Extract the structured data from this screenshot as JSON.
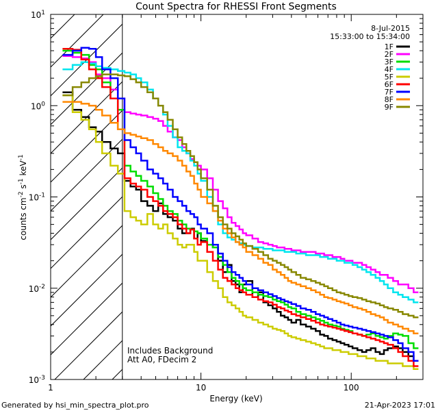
{
  "chart_data": {
    "type": "line",
    "title": "Count Spectra for RHESSI Front Segments",
    "xlabel": "Energy (keV)",
    "ylabel": "counts cm",
    "ylabel_parts": {
      "base": "counts cm",
      "exp1": "-2",
      "s": " s",
      "exp2": "-1",
      "kev": " keV",
      "exp3": "-1"
    },
    "xscale": "log",
    "yscale": "log",
    "xlim": [
      1,
      300
    ],
    "ylim": [
      0.001,
      10
    ],
    "x_tick_labels": [
      {
        "value": 1,
        "label": "1"
      },
      {
        "value": 10,
        "label": "10"
      },
      {
        "value": 100,
        "label": "100"
      }
    ],
    "y_tick_labels": [
      {
        "value": 10,
        "base": "10",
        "exp": "1"
      },
      {
        "value": 1,
        "base": "10",
        "exp": "0"
      },
      {
        "value": 0.1,
        "base": "10",
        "exp": "-1"
      },
      {
        "value": 0.01,
        "base": "10",
        "exp": "-2"
      },
      {
        "value": 0.001,
        "base": "10",
        "exp": "-3"
      }
    ],
    "date": "8-Jul-2015",
    "time_range": "15:33:00 to 15:34:00",
    "hatched_region_max_energy": 3,
    "annotations": [
      "Includes Background",
      "Att A0, FDecim 2"
    ],
    "footer_left": "Generated by hsi_min_spectra_plot.pro",
    "footer_right": "21-Apr-2023 17:01",
    "energy_bins": [
      1.2,
      1.4,
      1.6,
      1.8,
      2.0,
      2.2,
      2.5,
      2.8,
      3.1,
      3.4,
      3.7,
      4.0,
      4.4,
      4.8,
      5.2,
      5.6,
      6.0,
      6.5,
      7.0,
      7.5,
      8.0,
      8.5,
      9.0,
      9.5,
      10,
      11,
      12,
      13,
      14,
      15,
      16,
      17,
      18,
      19,
      20,
      22,
      24,
      26,
      28,
      30,
      32,
      34,
      36,
      38,
      40,
      43,
      46,
      50,
      54,
      58,
      62,
      66,
      70,
      75,
      80,
      85,
      90,
      96,
      102,
      110,
      118,
      126,
      135,
      145,
      155,
      165,
      175,
      190,
      205,
      220,
      240,
      260,
      280
    ],
    "series": [
      {
        "name": "1F",
        "color": "#000000",
        "values": [
          1.4,
          0.9,
          0.75,
          0.58,
          0.52,
          0.4,
          0.34,
          0.3,
          0.15,
          0.13,
          0.12,
          0.09,
          0.08,
          0.07,
          0.085,
          0.065,
          0.06,
          0.055,
          0.045,
          0.04,
          0.04,
          0.045,
          0.035,
          0.04,
          0.033,
          0.03,
          0.028,
          0.02,
          0.015,
          0.018,
          0.012,
          0.011,
          0.009,
          0.011,
          0.012,
          0.008,
          0.009,
          0.007,
          0.0065,
          0.006,
          0.0055,
          0.005,
          0.0048,
          0.0045,
          0.0042,
          0.0045,
          0.004,
          0.0038,
          0.0036,
          0.0034,
          0.0031,
          0.003,
          0.0028,
          0.0027,
          0.0026,
          0.0025,
          0.0024,
          0.0023,
          0.0022,
          0.0021,
          0.002,
          0.0021,
          0.0022,
          0.002,
          0.0019,
          0.0021,
          0.0022,
          0.0023,
          0.0022,
          0.002,
          0.0018,
          0.0016
        ]
      },
      {
        "name": "2F",
        "color": "#ff00ff",
        "values": [
          3.5,
          3.4,
          3.3,
          3.0,
          2.2,
          2.0,
          1.5,
          1.2,
          0.85,
          0.82,
          0.8,
          0.78,
          0.75,
          0.72,
          0.68,
          0.6,
          0.52,
          0.45,
          0.42,
          0.35,
          0.3,
          0.26,
          0.24,
          0.22,
          0.2,
          0.16,
          0.12,
          0.09,
          0.075,
          0.06,
          0.052,
          0.048,
          0.044,
          0.04,
          0.038,
          0.035,
          0.032,
          0.031,
          0.03,
          0.029,
          0.028,
          0.028,
          0.027,
          0.027,
          0.026,
          0.026,
          0.025,
          0.025,
          0.025,
          0.024,
          0.024,
          0.023,
          0.023,
          0.022,
          0.022,
          0.021,
          0.02,
          0.02,
          0.019,
          0.019,
          0.018,
          0.017,
          0.016,
          0.015,
          0.014,
          0.014,
          0.013,
          0.012,
          0.011,
          0.011,
          0.01,
          0.009
        ]
      },
      {
        "name": "3F",
        "color": "#00dd00",
        "values": [
          4.0,
          3.8,
          3.6,
          2.8,
          2.5,
          1.8,
          1.2,
          0.9,
          0.22,
          0.19,
          0.17,
          0.15,
          0.13,
          0.11,
          0.095,
          0.08,
          0.07,
          0.065,
          0.055,
          0.05,
          0.045,
          0.044,
          0.042,
          0.04,
          0.035,
          0.03,
          0.028,
          0.022,
          0.018,
          0.015,
          0.013,
          0.012,
          0.011,
          0.01,
          0.0095,
          0.009,
          0.0085,
          0.0082,
          0.008,
          0.0075,
          0.0072,
          0.007,
          0.0066,
          0.0062,
          0.006,
          0.0055,
          0.0052,
          0.005,
          0.0048,
          0.0046,
          0.0044,
          0.0042,
          0.004,
          0.0039,
          0.0038,
          0.0036,
          0.0035,
          0.0034,
          0.0032,
          0.0031,
          0.003,
          0.0031,
          0.0032,
          0.003,
          0.0029,
          0.0028,
          0.003,
          0.0032,
          0.0031,
          0.003,
          0.0025,
          0.0022
        ]
      },
      {
        "name": "4F",
        "color": "#00e5ee",
        "values": [
          2.5,
          2.8,
          3.0,
          2.9,
          2.7,
          2.6,
          2.5,
          2.4,
          2.3,
          2.2,
          2.0,
          1.8,
          1.5,
          1.2,
          1.0,
          0.8,
          0.6,
          0.45,
          0.35,
          0.32,
          0.3,
          0.25,
          0.22,
          0.18,
          0.15,
          0.1,
          0.07,
          0.05,
          0.04,
          0.036,
          0.034,
          0.032,
          0.031,
          0.03,
          0.029,
          0.028,
          0.028,
          0.027,
          0.027,
          0.026,
          0.026,
          0.026,
          0.025,
          0.025,
          0.025,
          0.024,
          0.024,
          0.023,
          0.023,
          0.023,
          0.022,
          0.022,
          0.021,
          0.021,
          0.02,
          0.02,
          0.019,
          0.019,
          0.018,
          0.017,
          0.016,
          0.015,
          0.014,
          0.013,
          0.012,
          0.011,
          0.01,
          0.009,
          0.0085,
          0.008,
          0.0075,
          0.007
        ]
      },
      {
        "name": "5F",
        "color": "#cccc00",
        "values": [
          1.3,
          0.85,
          0.7,
          0.55,
          0.4,
          0.3,
          0.22,
          0.18,
          0.07,
          0.06,
          0.055,
          0.05,
          0.065,
          0.05,
          0.045,
          0.05,
          0.04,
          0.035,
          0.03,
          0.028,
          0.03,
          0.03,
          0.025,
          0.02,
          0.02,
          0.015,
          0.012,
          0.01,
          0.008,
          0.007,
          0.0065,
          0.006,
          0.0055,
          0.005,
          0.0048,
          0.0045,
          0.0042,
          0.004,
          0.0038,
          0.0036,
          0.0035,
          0.0034,
          0.0032,
          0.003,
          0.0029,
          0.0028,
          0.0027,
          0.0026,
          0.0025,
          0.0024,
          0.0023,
          0.0022,
          0.0022,
          0.0021,
          0.0021,
          0.002,
          0.002,
          0.0019,
          0.0019,
          0.0018,
          0.0018,
          0.0017,
          0.0017,
          0.0016,
          0.0016,
          0.0016,
          0.0015,
          0.0015,
          0.0015,
          0.0014,
          0.0014,
          0.0013
        ]
      },
      {
        "name": "6F",
        "color": "#ff0000",
        "values": [
          4.2,
          4.1,
          3.2,
          2.5,
          2.0,
          1.6,
          1.2,
          0.55,
          0.16,
          0.14,
          0.13,
          0.12,
          0.1,
          0.09,
          0.08,
          0.07,
          0.065,
          0.06,
          0.05,
          0.045,
          0.04,
          0.044,
          0.035,
          0.03,
          0.032,
          0.025,
          0.02,
          0.016,
          0.013,
          0.012,
          0.011,
          0.01,
          0.0095,
          0.009,
          0.0085,
          0.008,
          0.0075,
          0.0072,
          0.007,
          0.0066,
          0.0062,
          0.006,
          0.0057,
          0.0055,
          0.0052,
          0.005,
          0.0048,
          0.0046,
          0.0044,
          0.0042,
          0.004,
          0.0039,
          0.0038,
          0.0037,
          0.0036,
          0.0035,
          0.0034,
          0.0033,
          0.0032,
          0.0031,
          0.003,
          0.0029,
          0.0028,
          0.0027,
          0.0026,
          0.0025,
          0.0024,
          0.0022,
          0.002,
          0.0018,
          0.0016,
          0.0014
        ]
      },
      {
        "name": "7F",
        "color": "#0000ff",
        "values": [
          3.6,
          4.0,
          4.3,
          4.2,
          3.4,
          2.5,
          2.0,
          1.2,
          0.42,
          0.35,
          0.3,
          0.25,
          0.2,
          0.18,
          0.16,
          0.14,
          0.12,
          0.1,
          0.09,
          0.08,
          0.07,
          0.065,
          0.06,
          0.05,
          0.045,
          0.04,
          0.03,
          0.024,
          0.02,
          0.017,
          0.015,
          0.014,
          0.013,
          0.012,
          0.011,
          0.01,
          0.0095,
          0.009,
          0.0086,
          0.0082,
          0.0078,
          0.0075,
          0.0072,
          0.007,
          0.0067,
          0.0064,
          0.006,
          0.0058,
          0.0055,
          0.0052,
          0.005,
          0.0048,
          0.0046,
          0.0044,
          0.0042,
          0.004,
          0.0039,
          0.0038,
          0.0037,
          0.0036,
          0.0035,
          0.0034,
          0.0033,
          0.0032,
          0.0031,
          0.003,
          0.0029,
          0.0027,
          0.0025,
          0.0022,
          0.002,
          0.0016
        ]
      },
      {
        "name": "8F",
        "color": "#ff8800",
        "values": [
          1.1,
          1.1,
          1.05,
          1.0,
          0.9,
          0.78,
          0.65,
          0.55,
          0.5,
          0.48,
          0.46,
          0.44,
          0.42,
          0.38,
          0.35,
          0.32,
          0.3,
          0.28,
          0.25,
          0.22,
          0.19,
          0.17,
          0.14,
          0.12,
          0.1,
          0.085,
          0.07,
          0.055,
          0.045,
          0.04,
          0.036,
          0.032,
          0.03,
          0.028,
          0.025,
          0.023,
          0.021,
          0.019,
          0.018,
          0.016,
          0.015,
          0.014,
          0.013,
          0.012,
          0.0115,
          0.011,
          0.0105,
          0.01,
          0.0095,
          0.009,
          0.0085,
          0.008,
          0.0078,
          0.0075,
          0.0072,
          0.007,
          0.0068,
          0.0065,
          0.0062,
          0.006,
          0.0058,
          0.0055,
          0.0052,
          0.005,
          0.0048,
          0.0045,
          0.0042,
          0.004,
          0.0038,
          0.0036,
          0.0034,
          0.0032
        ]
      },
      {
        "name": "9F",
        "color": "#888800",
        "values": [
          1.3,
          1.6,
          1.8,
          2.0,
          2.1,
          2.2,
          2.2,
          2.15,
          2.1,
          1.95,
          1.8,
          1.6,
          1.4,
          1.2,
          1.0,
          0.85,
          0.7,
          0.55,
          0.45,
          0.38,
          0.32,
          0.28,
          0.24,
          0.2,
          0.16,
          0.12,
          0.08,
          0.06,
          0.05,
          0.045,
          0.04,
          0.037,
          0.034,
          0.031,
          0.029,
          0.027,
          0.025,
          0.023,
          0.021,
          0.02,
          0.019,
          0.018,
          0.017,
          0.016,
          0.015,
          0.014,
          0.013,
          0.0125,
          0.012,
          0.0115,
          0.011,
          0.0105,
          0.01,
          0.0095,
          0.009,
          0.0088,
          0.0085,
          0.0082,
          0.008,
          0.0078,
          0.0075,
          0.0072,
          0.007,
          0.0068,
          0.0065,
          0.0062,
          0.006,
          0.0058,
          0.0055,
          0.0052,
          0.005,
          0.0048
        ]
      }
    ]
  }
}
